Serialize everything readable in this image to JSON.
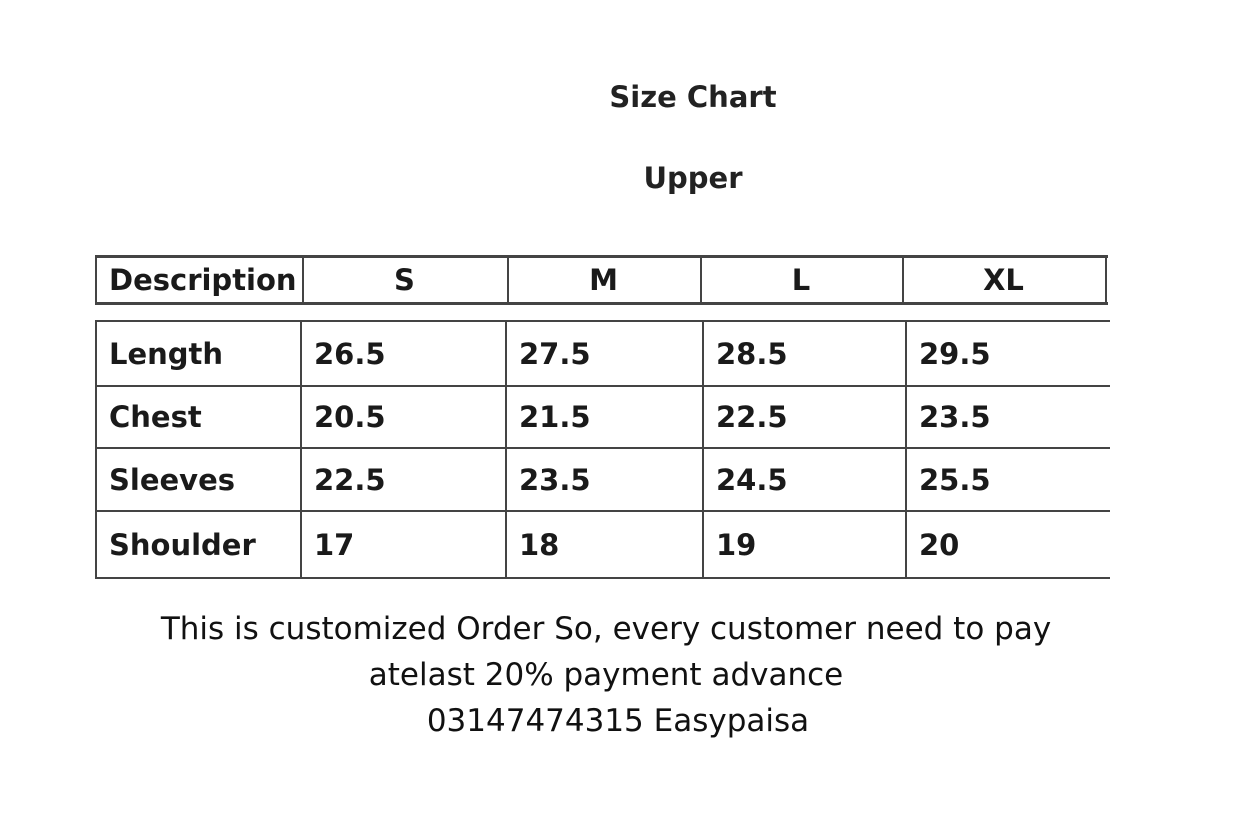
{
  "title": "Size Chart",
  "subtitle": "Upper",
  "table": {
    "headers": [
      "Description",
      "S",
      "M",
      "L",
      "XL"
    ],
    "rows": [
      [
        "Length",
        "26.5",
        "27.5",
        "28.5",
        "29.5"
      ],
      [
        "Chest",
        "20.5",
        "21.5",
        "22.5",
        "23.5"
      ],
      [
        "Sleeves",
        "22.5",
        "23.5",
        "24.5",
        "25.5"
      ],
      [
        "Shoulder",
        "17",
        "18",
        "19",
        "20"
      ]
    ]
  },
  "notes": [
    "This is customized Order So, every customer need to pay",
    "atelast 20% payment advance",
    "03147474315 Easypaisa"
  ]
}
